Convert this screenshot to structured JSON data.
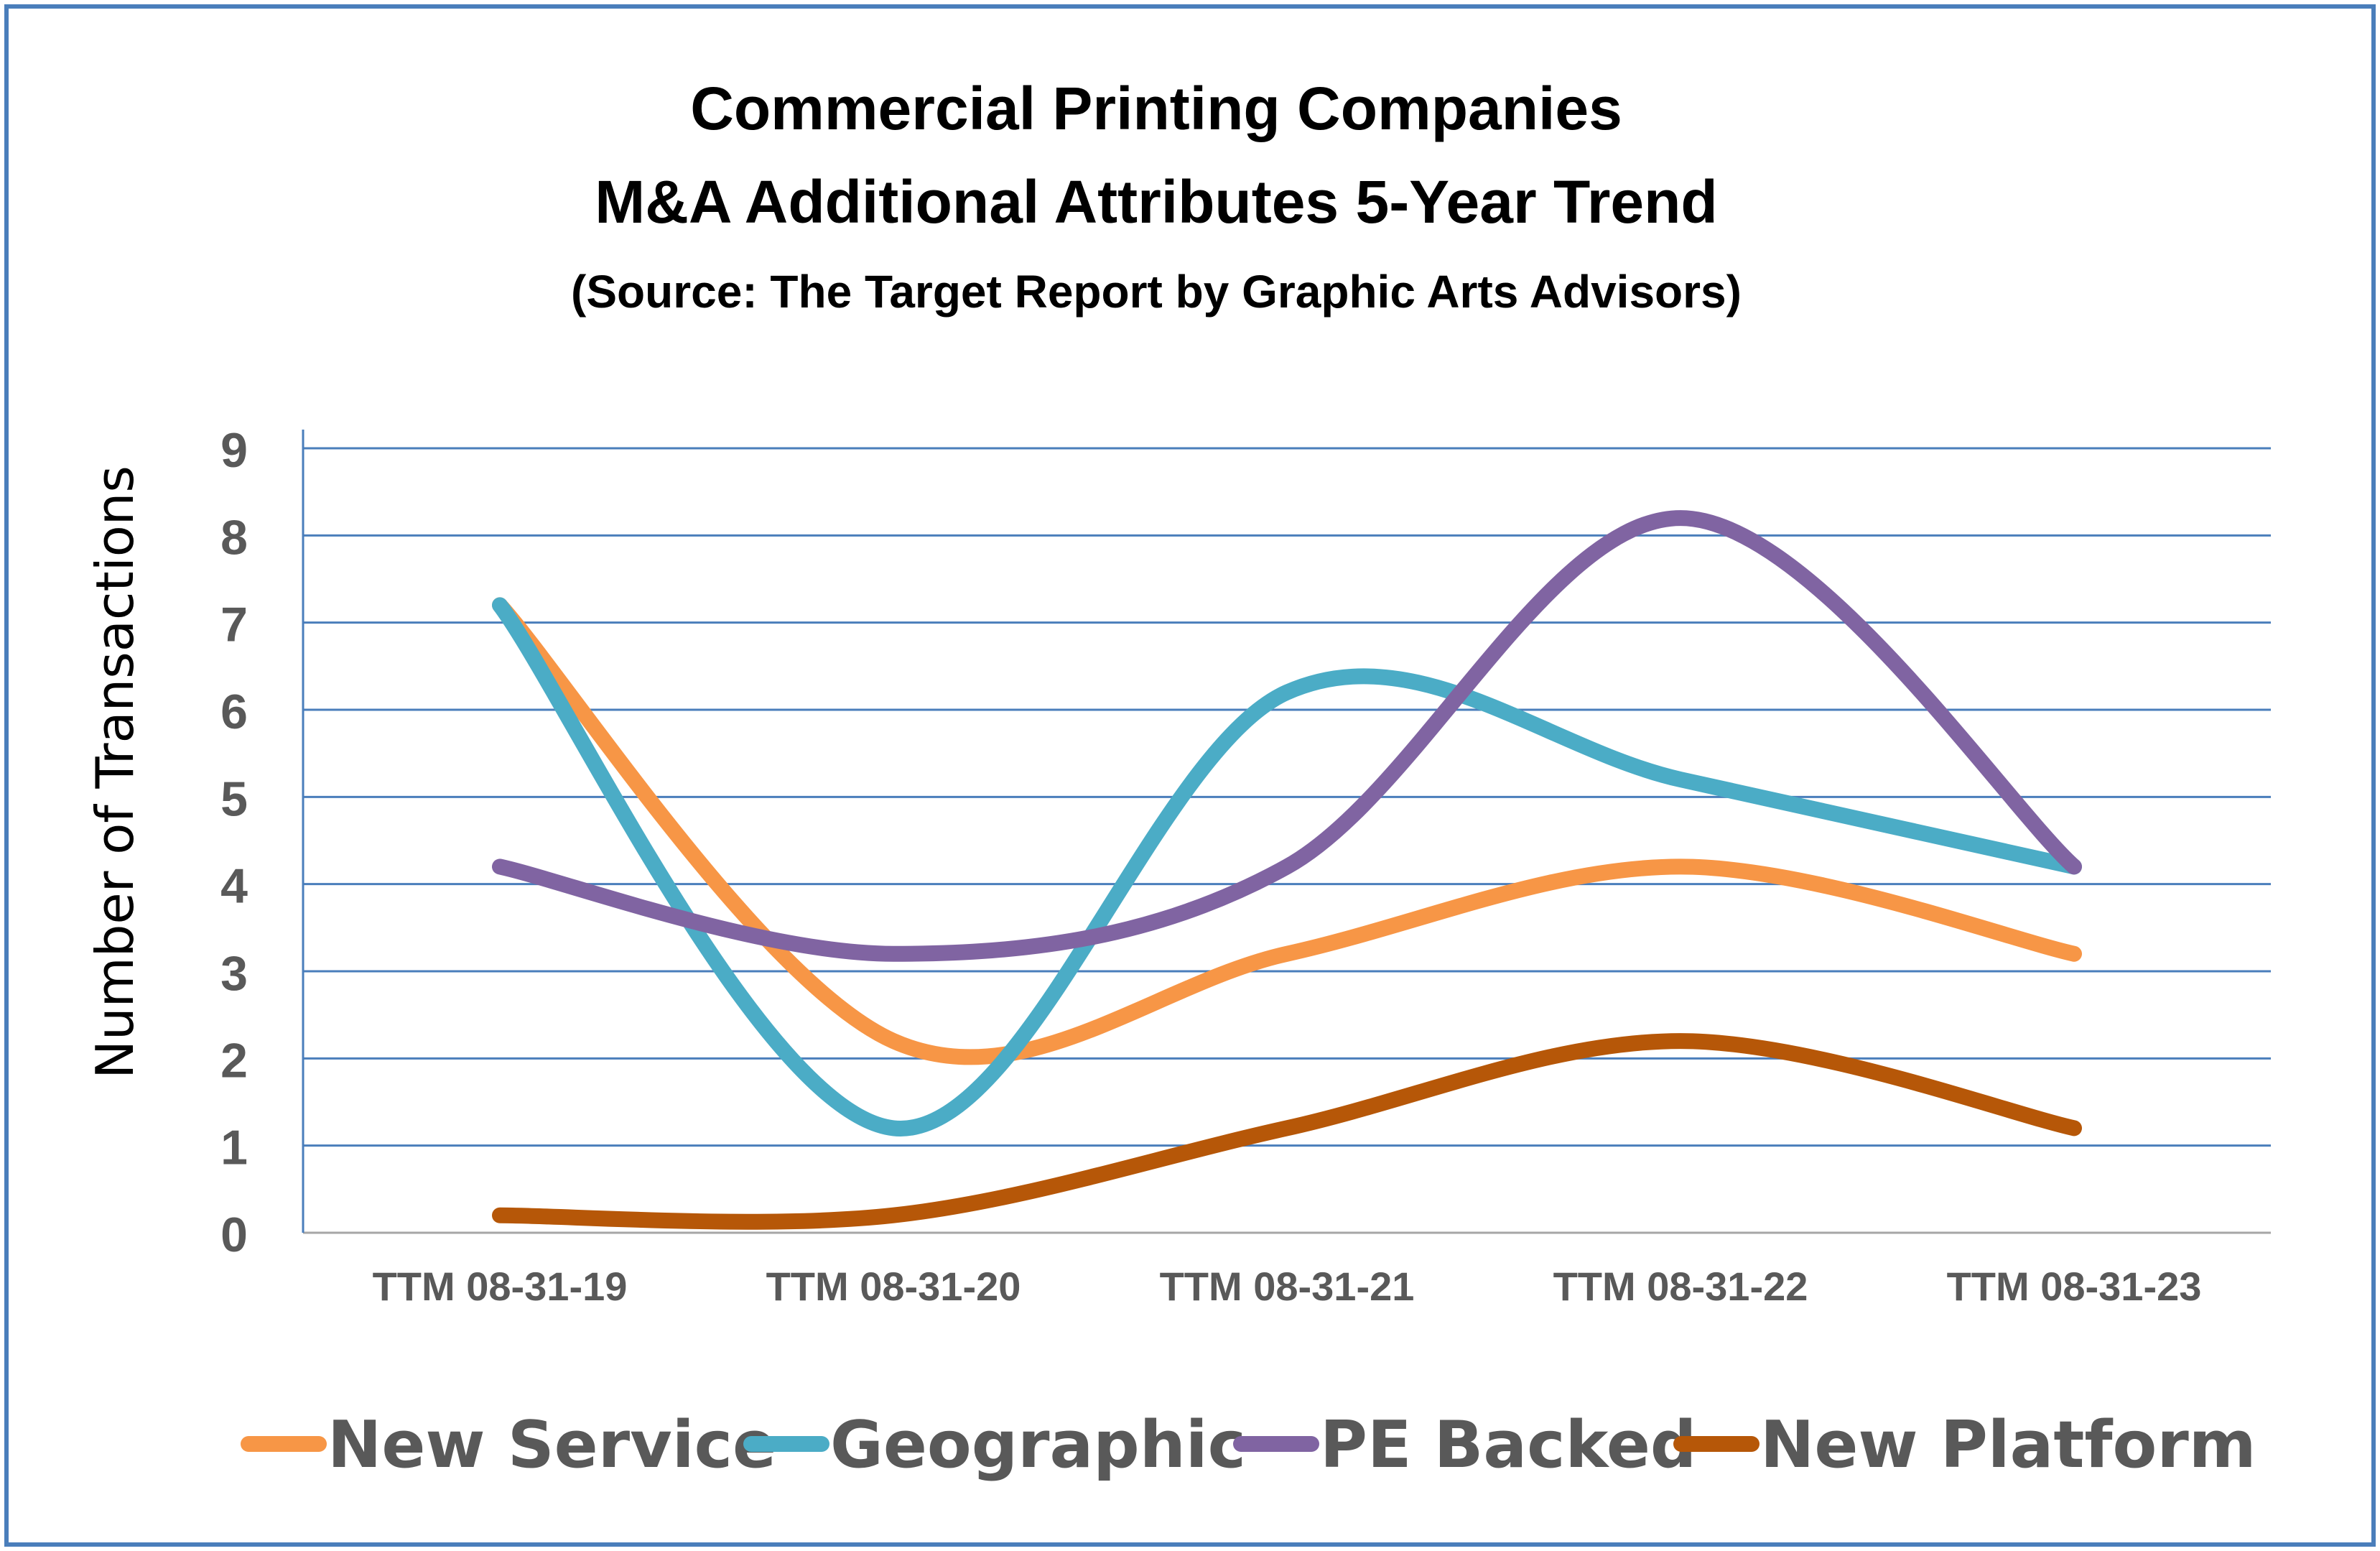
{
  "chart_data": {
    "type": "line",
    "title": "Commercial Printing Companies",
    "subtitle": "M&A Additional Attributes 5-Year Trend",
    "source": "(Source: The Target Report by Graphic Arts Advisors)",
    "xlabel": "",
    "ylabel": "Number of Transactions",
    "ylim": [
      0,
      9
    ],
    "yticks": [
      "0",
      "1",
      "2",
      "3",
      "4",
      "5",
      "6",
      "7",
      "8",
      "9"
    ],
    "grid": true,
    "legend_position": "bottom",
    "categories": [
      "TTM 08-31-19",
      "TTM 08-31-20",
      "TTM 08-31-21",
      "TTM 08-31-22",
      "TTM 08-31-23"
    ],
    "series": [
      {
        "name": "New Service",
        "color": "#f79646",
        "values": [
          7.2,
          2.2,
          3.2,
          4.2,
          3.2
        ]
      },
      {
        "name": "Geographic",
        "color": "#4bacc6",
        "values": [
          7.2,
          1.2,
          6.2,
          5.2,
          4.2
        ]
      },
      {
        "name": "PE Backed",
        "color": "#8064a2",
        "values": [
          4.2,
          3.2,
          4.2,
          8.2,
          4.2
        ]
      },
      {
        "name": "New Platform",
        "color": "#b65708",
        "values": [
          0.2,
          0.2,
          1.2,
          2.2,
          1.2
        ]
      }
    ]
  }
}
